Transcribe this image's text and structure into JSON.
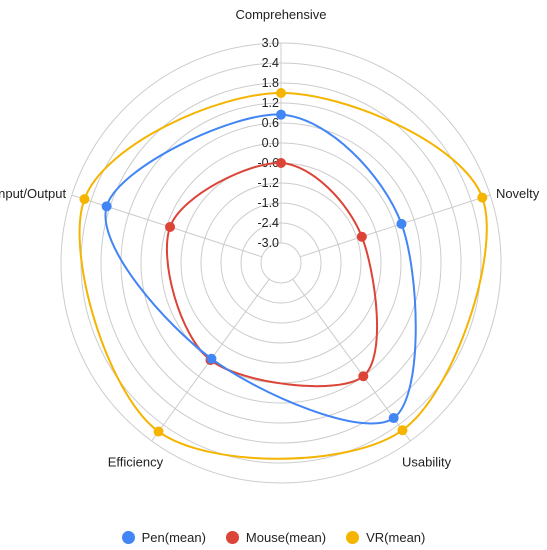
{
  "chart_data": {
    "type": "radar",
    "title": "",
    "axes": [
      "Comprehensive",
      "Novelty",
      "Usability",
      "Efficiency",
      "Input/Output"
    ],
    "ticks": [
      "3.0",
      "2.4",
      "1.8",
      "1.2",
      "0.6",
      "0.0",
      "-0.6",
      "-1.2",
      "-1.8",
      "-2.4",
      "-3.0"
    ],
    "rlim": [
      -3.0,
      3.0
    ],
    "grid": true,
    "legend_position": "bottom",
    "series": [
      {
        "name": "Pen(mean)",
        "color": "#4285F4",
        "values": [
          0.85,
          0.2,
          2.15,
          -0.05,
          1.9
        ]
      },
      {
        "name": "Mouse(mean)",
        "color": "#DB4437",
        "values": [
          -0.6,
          -1.05,
          0.6,
          0.0,
          -0.1
        ]
      },
      {
        "name": "VR(mean)",
        "color": "#F4B400",
        "values": [
          1.5,
          2.75,
          2.6,
          2.65,
          2.6
        ]
      }
    ]
  }
}
